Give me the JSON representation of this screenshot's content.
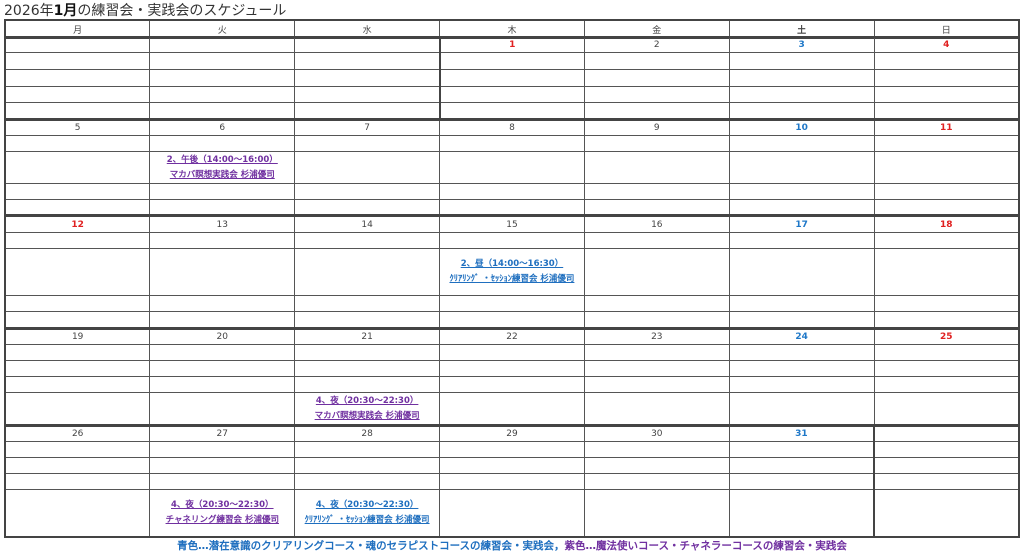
{
  "title": {
    "prefix": "2026年",
    "month": "1月",
    "suffix": "の練習会・実践会のスケジュール"
  },
  "weekdays": [
    "月",
    "火",
    "水",
    "木",
    "金",
    "土",
    "日"
  ],
  "colors": {
    "holiday_red": "#e02020",
    "saturday_blue": "#1f78c8",
    "purple_event": "#7030a0",
    "blue_event": "#1f6fbf"
  },
  "weeks": [
    {
      "days": [
        {
          "date": ""
        },
        {
          "date": ""
        },
        {
          "date": ""
        },
        {
          "date": "1",
          "color": "red"
        },
        {
          "date": "2"
        },
        {
          "date": "3",
          "color": "blue"
        },
        {
          "date": "4",
          "color": "red"
        }
      ]
    },
    {
      "days": [
        {
          "date": "5"
        },
        {
          "date": "6",
          "event": {
            "line1": "2、午後（14:00～16:00）",
            "line2": "マカバ瞑想実践会 杉浦優司",
            "color": "purple"
          }
        },
        {
          "date": "7"
        },
        {
          "date": "8"
        },
        {
          "date": "9"
        },
        {
          "date": "10",
          "color": "blue"
        },
        {
          "date": "11",
          "color": "red"
        }
      ]
    },
    {
      "days": [
        {
          "date": "12",
          "color": "red"
        },
        {
          "date": "13"
        },
        {
          "date": "14"
        },
        {
          "date": "15",
          "event": {
            "line1": "2、昼（14:00～16:30）",
            "line2": "ｸﾘｱﾘﾝｸﾞ ・ｾｯｼｮﾝ練習会 杉浦優司",
            "color": "blue"
          }
        },
        {
          "date": "16"
        },
        {
          "date": "17",
          "color": "blue"
        },
        {
          "date": "18",
          "color": "red"
        }
      ]
    },
    {
      "days": [
        {
          "date": "19"
        },
        {
          "date": "20"
        },
        {
          "date": "21",
          "event": {
            "line1": "4、夜（20:30～22:30）",
            "line2": "マカバ瞑想実践会 杉浦優司",
            "color": "purple"
          }
        },
        {
          "date": "22"
        },
        {
          "date": "23"
        },
        {
          "date": "24",
          "color": "blue"
        },
        {
          "date": "25",
          "color": "red"
        }
      ]
    },
    {
      "days": [
        {
          "date": "26"
        },
        {
          "date": "27",
          "event": {
            "line1": "4、夜（20:30～22:30）",
            "line2": "チャネリング練習会 杉浦優司",
            "color": "purple"
          }
        },
        {
          "date": "28",
          "event": {
            "line1": "4、夜（20:30～22:30）",
            "line2": "ｸﾘｱﾘﾝｸﾞ ・ｾｯｼｮﾝ練習会 杉浦優司",
            "color": "blue"
          }
        },
        {
          "date": "29"
        },
        {
          "date": "30"
        },
        {
          "date": "31",
          "color": "blue"
        },
        {
          "date": ""
        }
      ]
    }
  ],
  "legend": {
    "blue_text": "青色…潜在意識のクリアリングコース・魂のセラピストコースの練習会・実践会，",
    "purple_text": "紫色…魔法使いコース・チャネラーコースの練習会・実践会"
  }
}
